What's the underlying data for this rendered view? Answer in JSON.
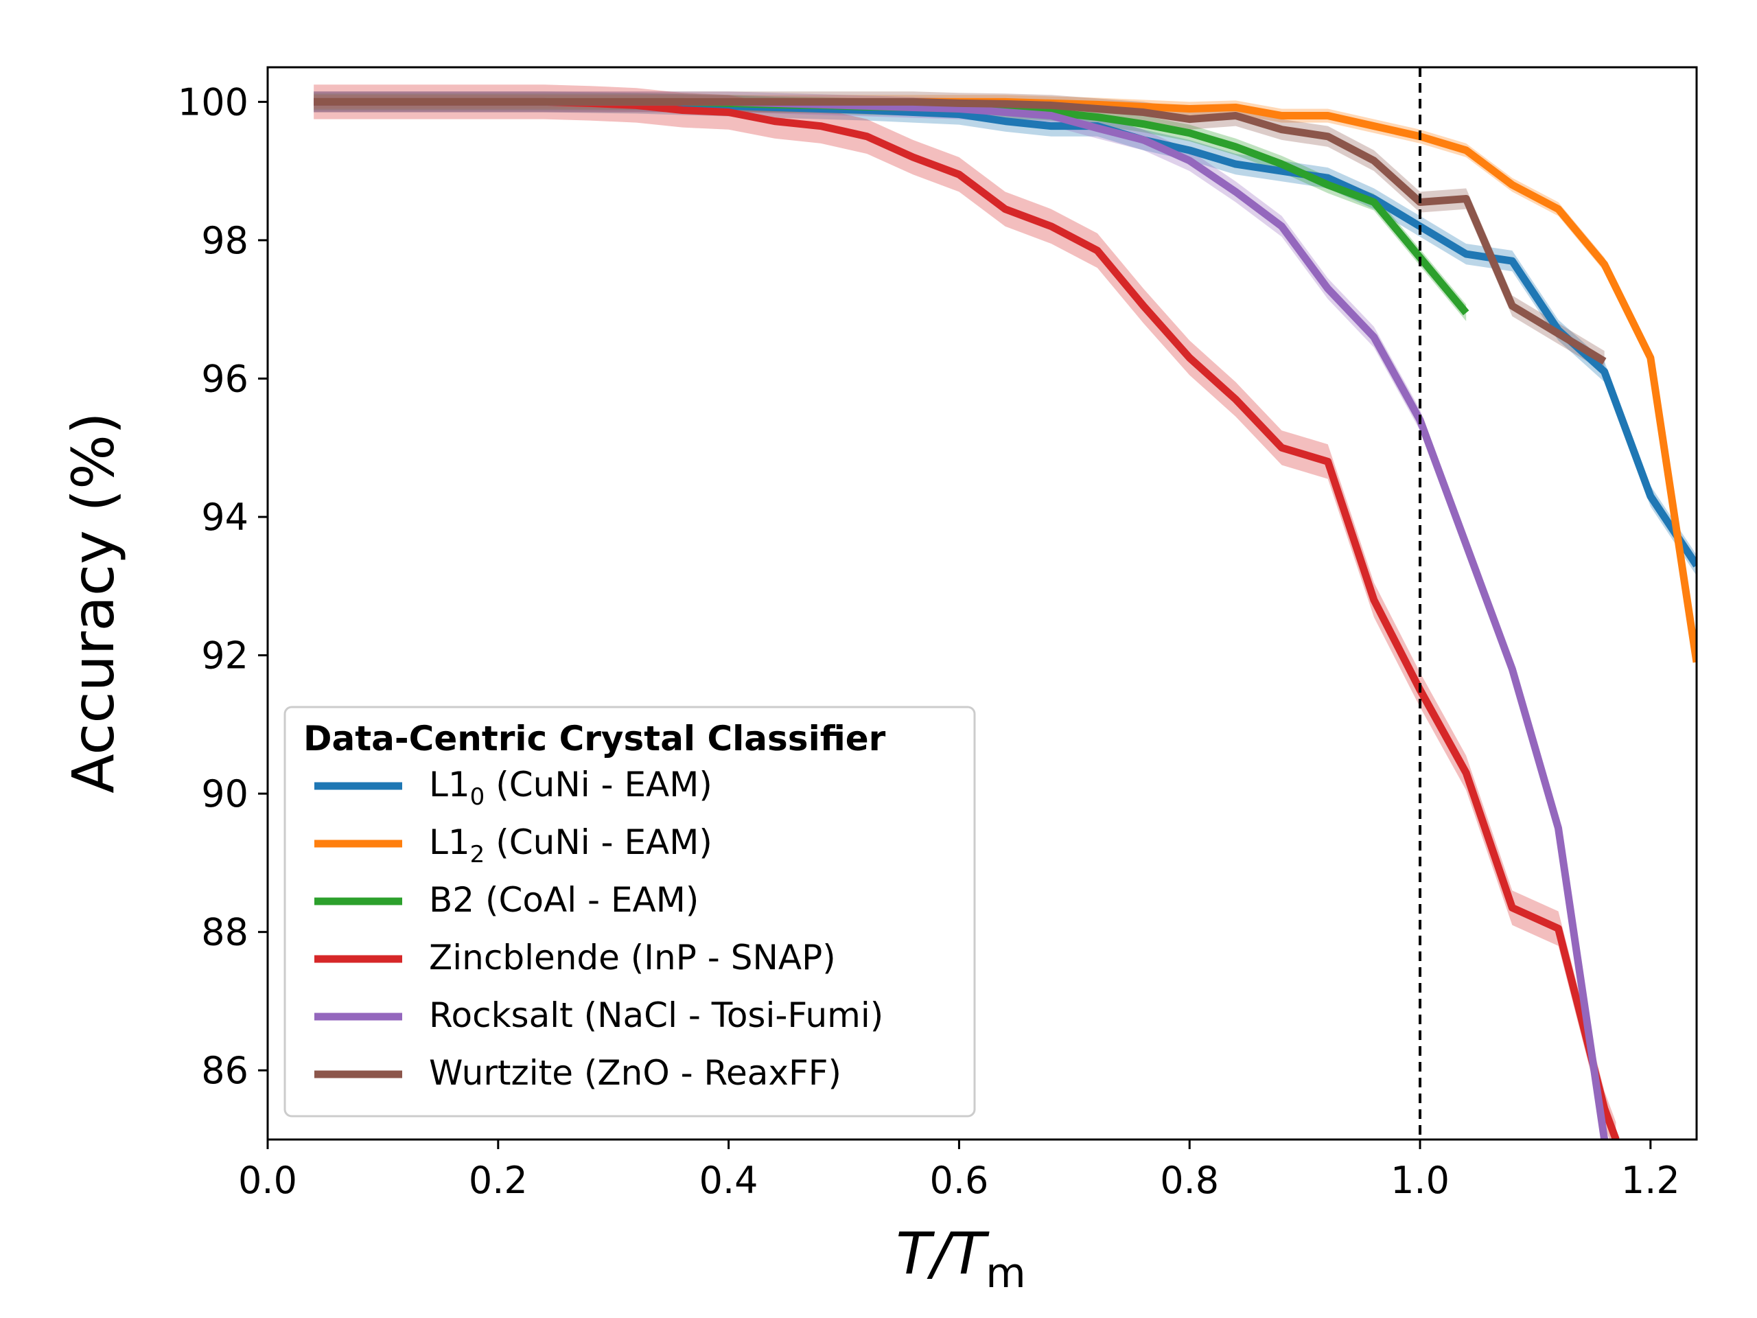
{
  "chart_data": {
    "type": "line",
    "xlabel_italic_main": "T/T",
    "xlabel_sub": "m",
    "ylabel": "Accuracy (%)",
    "xlim": [
      0.0,
      1.24
    ],
    "ylim": [
      85.0,
      100.5
    ],
    "xticks": [
      0.0,
      0.2,
      0.4,
      0.6,
      0.8,
      1.0,
      1.2
    ],
    "xtick_labels": [
      "0.0",
      "0.2",
      "0.4",
      "0.6",
      "0.8",
      "1.0",
      "1.2"
    ],
    "yticks": [
      86,
      88,
      90,
      92,
      94,
      96,
      98,
      100
    ],
    "ytick_labels": [
      "86",
      "88",
      "90",
      "92",
      "94",
      "96",
      "98",
      "100"
    ],
    "grid": false,
    "vline": {
      "x": 1.0,
      "style": "dashed",
      "color": "#000000"
    },
    "legend": {
      "placement": "lower-left",
      "title": "Data-Centric Crystal Classifier"
    },
    "series": [
      {
        "name": "L1",
        "name_sub": "0",
        "name_suffix": " (CuNi - EAM)",
        "color": "#1f77b4",
        "x": [
          0.04,
          0.08,
          0.12,
          0.16,
          0.2,
          0.24,
          0.28,
          0.32,
          0.36,
          0.4,
          0.44,
          0.48,
          0.52,
          0.56,
          0.6,
          0.64,
          0.68,
          0.72,
          0.76,
          0.8,
          0.84,
          0.88,
          0.92,
          0.96,
          1.0,
          1.04,
          1.08,
          1.12,
          1.16,
          1.2,
          1.24
        ],
        "y": [
          100,
          100,
          100,
          100,
          100,
          100,
          99.99,
          99.98,
          99.96,
          99.94,
          99.92,
          99.9,
          99.88,
          99.85,
          99.82,
          99.72,
          99.65,
          99.65,
          99.45,
          99.3,
          99.1,
          99.0,
          98.9,
          98.6,
          98.2,
          97.8,
          97.7,
          96.7,
          96.1,
          94.3,
          93.3
        ],
        "band": 0.15
      },
      {
        "name": "L1",
        "name_sub": "2",
        "name_suffix": " (CuNi - EAM)",
        "color": "#ff7f0e",
        "x": [
          0.04,
          0.08,
          0.12,
          0.16,
          0.2,
          0.24,
          0.28,
          0.32,
          0.36,
          0.4,
          0.44,
          0.48,
          0.52,
          0.56,
          0.6,
          0.64,
          0.68,
          0.72,
          0.76,
          0.8,
          0.84,
          0.88,
          0.92,
          0.96,
          1.0,
          1.04,
          1.08,
          1.12,
          1.16,
          1.2,
          1.24
        ],
        "y": [
          100,
          100,
          100,
          100,
          100,
          100,
          100,
          100,
          100,
          100,
          100,
          100,
          100,
          100,
          100,
          100,
          99.98,
          99.96,
          99.93,
          99.9,
          99.92,
          99.8,
          99.8,
          99.65,
          99.5,
          99.3,
          98.8,
          98.45,
          97.65,
          96.3,
          91.9
        ],
        "band": 0.1
      },
      {
        "name": "B2 (CoAl - EAM)",
        "color": "#2ca02c",
        "x": [
          0.04,
          0.08,
          0.12,
          0.16,
          0.2,
          0.24,
          0.28,
          0.32,
          0.36,
          0.4,
          0.44,
          0.48,
          0.52,
          0.56,
          0.6,
          0.64,
          0.68,
          0.72,
          0.76,
          0.8,
          0.84,
          0.88,
          0.92,
          0.96,
          1.0,
          1.04
        ],
        "y": [
          100,
          100,
          100,
          100,
          100,
          100,
          100,
          100,
          100,
          99.98,
          99.96,
          99.95,
          99.93,
          99.92,
          99.9,
          99.88,
          99.85,
          99.78,
          99.68,
          99.55,
          99.35,
          99.1,
          98.8,
          98.55,
          97.75,
          96.95
        ],
        "band": 0.12
      },
      {
        "name": "Zincblende (InP - SNAP)",
        "color": "#d62728",
        "x": [
          0.04,
          0.08,
          0.12,
          0.16,
          0.2,
          0.24,
          0.28,
          0.32,
          0.36,
          0.4,
          0.44,
          0.48,
          0.52,
          0.56,
          0.6,
          0.64,
          0.68,
          0.72,
          0.76,
          0.8,
          0.84,
          0.88,
          0.92,
          0.96,
          1.0,
          1.04,
          1.08,
          1.12,
          1.16,
          1.17
        ],
        "y": [
          100,
          100,
          100,
          100,
          100,
          100,
          99.98,
          99.95,
          99.88,
          99.85,
          99.72,
          99.65,
          99.5,
          99.2,
          98.95,
          98.45,
          98.2,
          97.85,
          97.05,
          96.3,
          95.7,
          95.0,
          94.8,
          92.8,
          91.5,
          90.3,
          88.35,
          88.05,
          85.45,
          85.0
        ],
        "band": 0.25
      },
      {
        "name": "Rocksalt (NaCl - Tosi-Fumi)",
        "color": "#9467bd",
        "x": [
          0.04,
          0.08,
          0.12,
          0.16,
          0.2,
          0.24,
          0.28,
          0.32,
          0.36,
          0.4,
          0.44,
          0.48,
          0.52,
          0.56,
          0.6,
          0.64,
          0.68,
          0.72,
          0.76,
          0.8,
          0.84,
          0.88,
          0.92,
          0.96,
          1.0,
          1.04,
          1.08,
          1.12,
          1.16
        ],
        "y": [
          100,
          100,
          100,
          100,
          100,
          100,
          100,
          100,
          100,
          100,
          99.98,
          99.96,
          99.94,
          99.92,
          99.9,
          99.85,
          99.8,
          99.62,
          99.45,
          99.15,
          98.7,
          98.2,
          97.3,
          96.6,
          95.4,
          93.6,
          91.8,
          89.5,
          85.0
        ],
        "band": 0.15
      },
      {
        "name": "Wurtzite (ZnO - ReaxFF)",
        "color": "#8c564b",
        "x": [
          0.04,
          0.08,
          0.12,
          0.16,
          0.2,
          0.24,
          0.28,
          0.32,
          0.36,
          0.4,
          0.44,
          0.48,
          0.52,
          0.56,
          0.6,
          0.64,
          0.68,
          0.72,
          0.76,
          0.8,
          0.84,
          0.88,
          0.92,
          0.96,
          1.0,
          1.04,
          1.08,
          1.12,
          1.16
        ],
        "y": [
          100,
          100,
          100,
          100,
          100,
          100,
          100,
          100,
          100,
          100,
          100,
          100,
          100,
          100,
          99.98,
          99.97,
          99.95,
          99.9,
          99.85,
          99.75,
          99.8,
          99.6,
          99.5,
          99.15,
          98.55,
          98.6,
          97.05,
          96.65,
          96.25
        ],
        "band": 0.15
      }
    ]
  }
}
